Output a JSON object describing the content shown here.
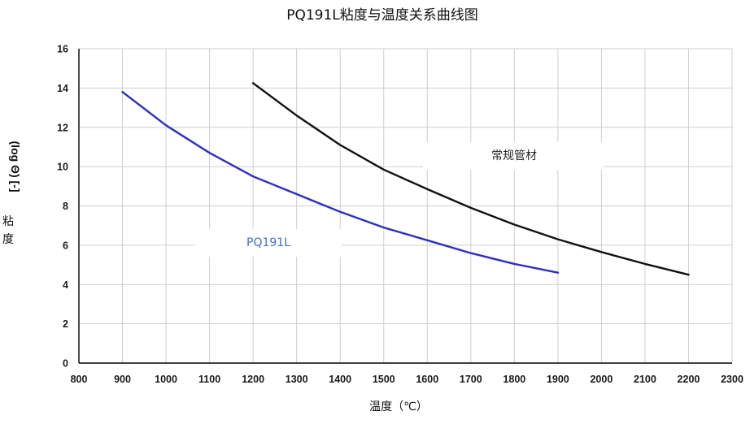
{
  "chart_data": {
    "type": "line",
    "title": "PQ191L粘度与温度关系曲线图",
    "xlabel": "温度（℃）",
    "ylabel_line1": "(log Θ) [-]",
    "ylabel_line2": "粘",
    "ylabel_line3": "度",
    "xlim": [
      800,
      2300
    ],
    "ylim": [
      0,
      16
    ],
    "x_ticks": [
      800,
      900,
      1000,
      1100,
      1200,
      1300,
      1400,
      1500,
      1600,
      1700,
      1800,
      1900,
      2000,
      2100,
      2200,
      2300
    ],
    "y_ticks": [
      0,
      2,
      4,
      6,
      8,
      10,
      12,
      14,
      16
    ],
    "grid": true,
    "legend": "none",
    "series": [
      {
        "name": "PQ191L",
        "color": "#2b2bdd",
        "label_color": "#3a6fd8",
        "label_position": "label-box below curve near x=1300",
        "x": [
          900,
          1000,
          1100,
          1200,
          1300,
          1400,
          1500,
          1600,
          1700,
          1800,
          1900
        ],
        "y": [
          13.8,
          12.1,
          10.7,
          9.5,
          8.6,
          7.7,
          6.9,
          6.25,
          5.6,
          5.05,
          4.6
        ]
      },
      {
        "name": "常规管材",
        "color": "#111111",
        "label_color": "#222222",
        "label_position": "label-box above curve near x=1600",
        "x": [
          1200,
          1300,
          1400,
          1500,
          1600,
          1700,
          1800,
          1900,
          2000,
          2100,
          2200
        ],
        "y": [
          14.25,
          12.6,
          11.1,
          9.85,
          8.85,
          7.9,
          7.05,
          6.3,
          5.65,
          5.05,
          4.5
        ]
      }
    ]
  }
}
